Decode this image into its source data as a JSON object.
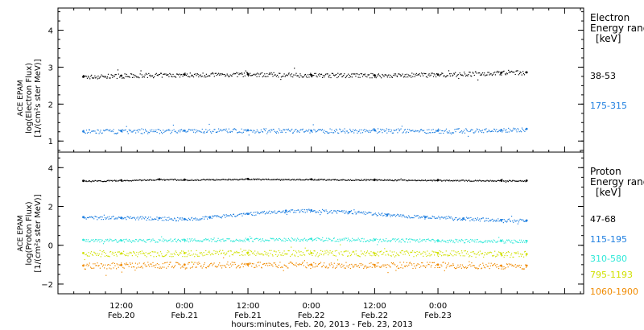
{
  "chart_data": [
    {
      "type": "scatter",
      "title": "",
      "ylabel": [
        "ACE EPAM",
        "log(Electron Flux)",
        "[1/(cm²s ster MeV)]"
      ],
      "ylim": [
        0.7,
        4.6
      ],
      "yticks": [
        1,
        2,
        3,
        4
      ],
      "legend_title": [
        "Electron",
        "Energy range",
        "[keV]"
      ],
      "series": [
        {
          "name": "38-53",
          "color": "#000000",
          "x": [
            0.2,
            0.5,
            1.0,
            1.5,
            2.0,
            2.5,
            3.0,
            3.5,
            3.7
          ],
          "y": [
            2.74,
            2.77,
            2.8,
            2.81,
            2.79,
            2.78,
            2.8,
            2.85,
            2.86
          ]
        },
        {
          "name": "175-315",
          "color": "#1f7fe0",
          "x": [
            0.2,
            0.5,
            1.0,
            1.5,
            2.0,
            2.5,
            3.0,
            3.5,
            3.7
          ],
          "y": [
            1.26,
            1.27,
            1.28,
            1.29,
            1.28,
            1.29,
            1.28,
            1.3,
            1.33
          ]
        }
      ]
    },
    {
      "type": "scatter",
      "title": "",
      "ylabel": [
        "ACE EPAM",
        "log(Proton Flux)",
        "[1/(cm²s ster MeV)]"
      ],
      "ylim": [
        -2.5,
        4.8
      ],
      "yticks": [
        -2,
        0,
        2,
        4
      ],
      "legend_title": [
        "Proton",
        "Energy range",
        "[keV]"
      ],
      "series": [
        {
          "name": "47-68",
          "color": "#000000",
          "x": [
            0.2,
            0.5,
            0.8,
            1.0,
            1.5,
            2.0,
            2.5,
            3.0,
            3.5,
            3.7
          ],
          "y": [
            3.32,
            3.35,
            3.4,
            3.38,
            3.42,
            3.4,
            3.38,
            3.36,
            3.34,
            3.33
          ]
        },
        {
          "name": "115-195",
          "color": "#1f7fe0",
          "x": [
            0.2,
            0.5,
            0.8,
            1.0,
            1.2,
            1.5,
            1.8,
            2.0,
            2.3,
            2.6,
            2.9,
            3.2,
            3.5,
            3.7
          ],
          "y": [
            1.45,
            1.42,
            1.4,
            1.35,
            1.45,
            1.62,
            1.78,
            1.8,
            1.72,
            1.58,
            1.45,
            1.38,
            1.3,
            1.28
          ]
        },
        {
          "name": "310-580",
          "color": "#2ee8d8",
          "x": [
            0.2,
            0.5,
            1.0,
            1.5,
            2.0,
            2.5,
            3.0,
            3.5,
            3.7
          ],
          "y": [
            0.28,
            0.25,
            0.28,
            0.3,
            0.33,
            0.28,
            0.25,
            0.22,
            0.22
          ]
        },
        {
          "name": "795-1193",
          "color": "#d0e000",
          "x": [
            0.2,
            0.5,
            1.0,
            1.5,
            2.0,
            2.5,
            3.0,
            3.5,
            3.7
          ],
          "y": [
            -0.4,
            -0.42,
            -0.4,
            -0.38,
            -0.4,
            -0.42,
            -0.4,
            -0.45,
            -0.45
          ]
        },
        {
          "name": "1060-1900",
          "color": "#f08a00",
          "x": [
            0.2,
            0.5,
            1.0,
            1.5,
            2.0,
            2.5,
            3.0,
            3.5,
            3.7
          ],
          "y": [
            -1.05,
            -1.02,
            -1.0,
            -0.98,
            -1.0,
            -1.02,
            -1.0,
            -1.05,
            -1.05
          ]
        }
      ]
    }
  ],
  "x_axis": {
    "tick_labels": [
      {
        "time": "12:00",
        "date": "Feb.20",
        "x": 0.5
      },
      {
        "time": "0:00",
        "date": "Feb.21",
        "x": 1.0
      },
      {
        "time": "12:00",
        "date": "Feb.21",
        "x": 1.5
      },
      {
        "time": "0:00",
        "date": "Feb.22",
        "x": 2.0
      },
      {
        "time": "12:00",
        "date": "Feb.22",
        "x": 2.5
      },
      {
        "time": "0:00",
        "date": "Feb.23",
        "x": 3.0
      }
    ],
    "xlim": [
      0.0,
      4.15
    ],
    "xlabel": "hours:minutes, Feb. 20, 2013 - Feb. 23, 2013"
  }
}
